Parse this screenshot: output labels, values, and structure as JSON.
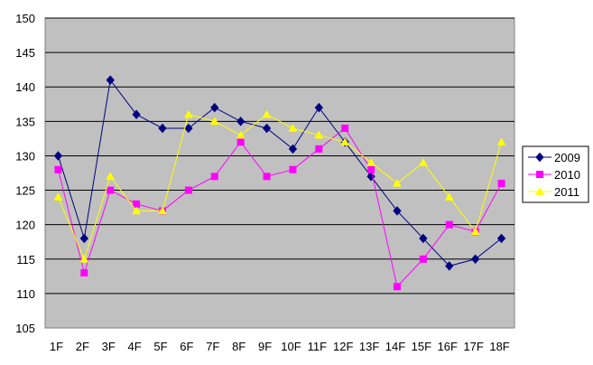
{
  "chart_data": {
    "type": "line",
    "title": "",
    "xlabel": "",
    "ylabel": "",
    "categories": [
      "1F",
      "2F",
      "3F",
      "4F",
      "5F",
      "6F",
      "7F",
      "8F",
      "9F",
      "10F",
      "11F",
      "12F",
      "13F",
      "14F",
      "15F",
      "16F",
      "17F",
      "18F"
    ],
    "ylim": [
      105,
      150
    ],
    "yticks": [
      105,
      110,
      115,
      120,
      125,
      130,
      135,
      140,
      145,
      150
    ],
    "grid": true,
    "plot_background": "#c0c0c0",
    "legend_position": "right",
    "series": [
      {
        "name": "2009",
        "color": "#000080",
        "marker": "diamond",
        "values": [
          130,
          118,
          141,
          136,
          134,
          134,
          137,
          135,
          134,
          131,
          137,
          132,
          127,
          122,
          118,
          114,
          115,
          118
        ]
      },
      {
        "name": "2010",
        "color": "#ff00ff",
        "marker": "square",
        "values": [
          128,
          113,
          125,
          123,
          122,
          125,
          127,
          132,
          127,
          128,
          131,
          134,
          128,
          111,
          115,
          120,
          119,
          126
        ]
      },
      {
        "name": "2011",
        "color": "#ffff00",
        "marker": "triangle",
        "values": [
          124,
          115,
          127,
          122,
          122,
          136,
          135,
          133,
          136,
          134,
          133,
          132,
          129,
          126,
          129,
          124,
          119,
          132
        ]
      }
    ]
  }
}
